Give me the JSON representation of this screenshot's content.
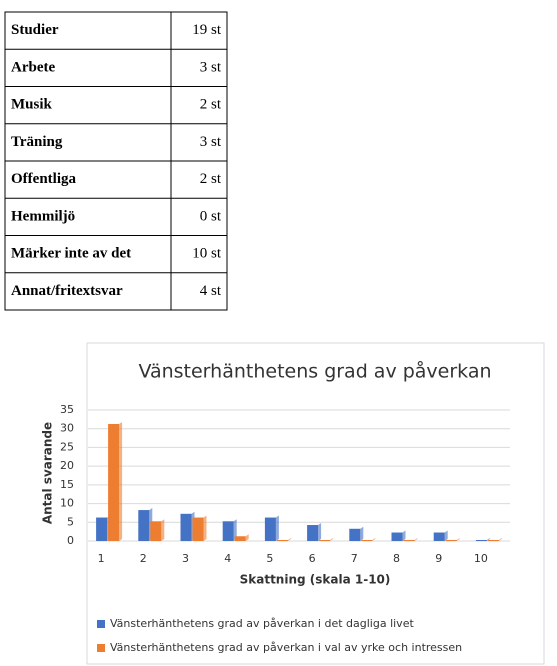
{
  "table": {
    "rows": [
      [
        "Studier",
        "19 st"
      ],
      [
        "Arbete",
        "3 st"
      ],
      [
        "Musik",
        "2 st"
      ],
      [
        "Träning",
        "3 st"
      ],
      [
        "Offentliga",
        "2 st"
      ],
      [
        "Hemmiljö",
        "0 st"
      ],
      [
        "Märker inte av det",
        "10 st"
      ],
      [
        "Annat/fritextsvar",
        "4 st"
      ]
    ]
  },
  "chart_data": {
    "type": "bar",
    "title": "Vänsterhänthetens grad av påverkan",
    "x_label": "Skattning (skala 1-10)",
    "y_label": "Antal svarande",
    "categories": [
      1,
      2,
      3,
      4,
      5,
      6,
      7,
      8,
      9,
      10
    ],
    "series": [
      {
        "name": "Vänsterhänthetens grad av påverkan i det dagliga livet",
        "color": "#4472c4",
        "values": [
          6,
          8,
          7,
          5,
          6,
          4,
          3,
          2,
          2,
          0
        ]
      },
      {
        "name": "Vänsterhänthetens grad av påverkan i val av yrke och intressen",
        "color": "#ed7d31",
        "values": [
          31,
          5,
          6,
          1,
          0,
          0,
          0,
          0,
          0,
          0
        ]
      }
    ],
    "ylim": [
      0,
      35
    ],
    "yticks": [
      0,
      5,
      10,
      15,
      20,
      25,
      30,
      35
    ],
    "grid": true
  }
}
